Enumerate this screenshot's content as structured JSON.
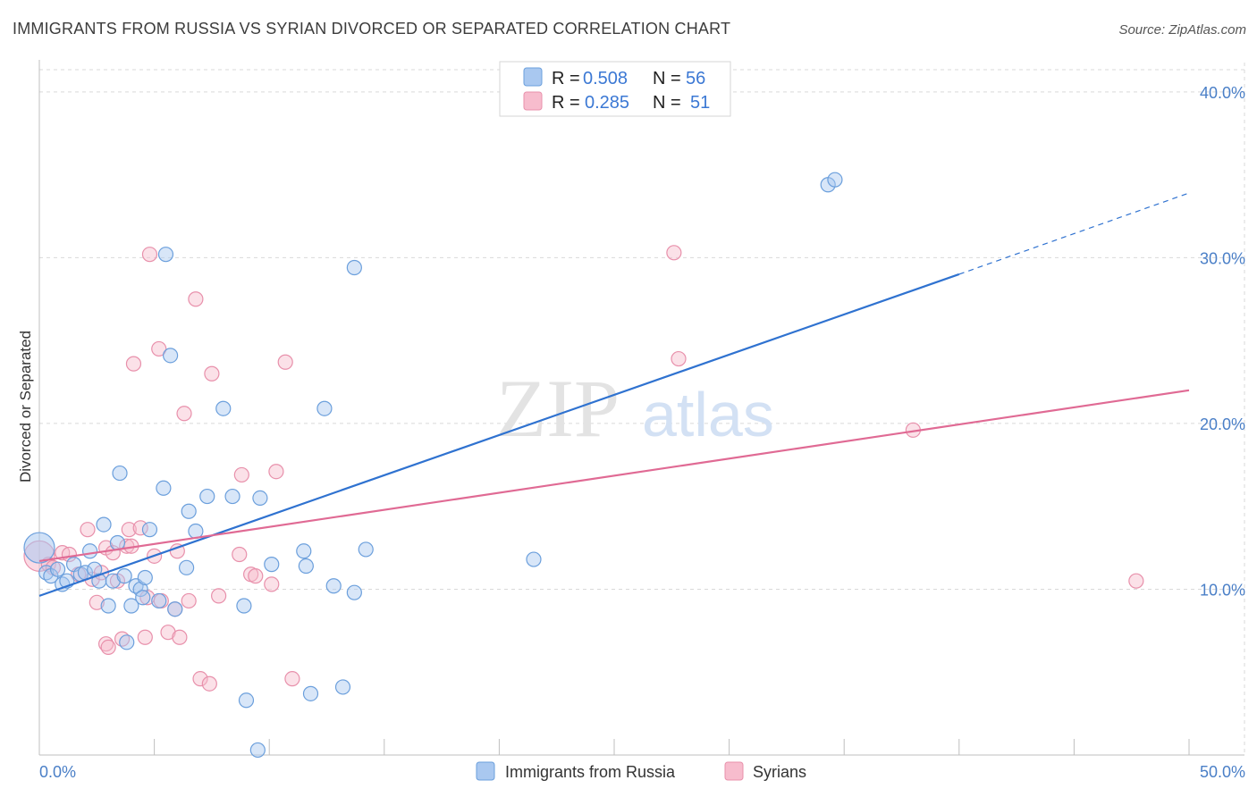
{
  "header": {
    "title": "IMMIGRANTS FROM RUSSIA VS SYRIAN DIVORCED OR SEPARATED CORRELATION CHART",
    "source": "Source: ZipAtlas.com"
  },
  "watermark": {
    "zip": "ZIP",
    "atlas": "atlas"
  },
  "colors": {
    "blue_fill": "#a9c8f0",
    "blue_stroke": "#6b9fdc",
    "blue_line": "#2f72d0",
    "pink_fill": "#f7bccd",
    "pink_stroke": "#e890ab",
    "pink_line": "#e06a94",
    "grid": "#d9d9d9",
    "tick_text": "#4a7fc7"
  },
  "legend": {
    "r_label": "R =",
    "n_label": "N =",
    "series": [
      {
        "r": "0.508",
        "n": "56"
      },
      {
        "r": "0.285",
        "n": "51"
      }
    ]
  },
  "chart_data": {
    "type": "scatter",
    "title": "IMMIGRANTS FROM RUSSIA VS SYRIAN DIVORCED OR SEPARATED CORRELATION CHART",
    "xlabel": "",
    "ylabel": "Divorced or Separated",
    "xlim": [
      0,
      50
    ],
    "ylim": [
      0,
      41.5
    ],
    "x_tick_labels": [
      "0.0%",
      "50.0%"
    ],
    "y_ticks": [
      10,
      20,
      30,
      40
    ],
    "y_tick_labels": [
      "10.0%",
      "20.0%",
      "30.0%",
      "40.0%"
    ],
    "grid": true,
    "legend_position": "top-center",
    "series": [
      {
        "name": "Immigrants from Russia",
        "color": "#a9c8f0",
        "trend": {
          "x0": 0,
          "y0": 9.6,
          "x1": 40,
          "y1": 29.0,
          "dash_to_x": 50,
          "dash_to_y": 33.9
        },
        "points": [
          [
            0.0,
            12.5,
            1
          ],
          [
            0.3,
            11.0,
            0
          ],
          [
            0.5,
            10.8,
            0
          ],
          [
            0.8,
            11.2,
            0
          ],
          [
            1.0,
            10.3,
            0
          ],
          [
            1.2,
            10.5,
            0
          ],
          [
            1.5,
            11.5,
            0
          ],
          [
            1.8,
            10.9,
            0
          ],
          [
            2.0,
            11.0,
            0
          ],
          [
            2.2,
            12.3,
            0
          ],
          [
            2.4,
            11.2,
            0
          ],
          [
            2.6,
            10.5,
            0
          ],
          [
            2.8,
            13.9,
            0
          ],
          [
            3.0,
            9.0,
            0
          ],
          [
            3.2,
            10.5,
            0
          ],
          [
            3.4,
            12.8,
            0
          ],
          [
            3.5,
            17.0,
            0
          ],
          [
            3.7,
            10.8,
            0
          ],
          [
            3.8,
            6.8,
            0
          ],
          [
            4.0,
            9.0,
            0
          ],
          [
            4.2,
            10.2,
            0
          ],
          [
            4.4,
            10.0,
            0
          ],
          [
            4.5,
            9.5,
            0
          ],
          [
            4.6,
            10.7,
            0
          ],
          [
            4.8,
            13.6,
            0
          ],
          [
            5.2,
            9.3,
            0
          ],
          [
            5.4,
            16.1,
            0
          ],
          [
            5.5,
            30.2,
            0
          ],
          [
            5.7,
            24.1,
            0
          ],
          [
            5.9,
            8.8,
            0
          ],
          [
            6.4,
            11.3,
            0
          ],
          [
            6.5,
            14.7,
            0
          ],
          [
            6.8,
            13.5,
            0
          ],
          [
            7.3,
            15.6,
            0
          ],
          [
            8.0,
            20.9,
            0
          ],
          [
            8.4,
            15.6,
            0
          ],
          [
            8.9,
            9.0,
            0
          ],
          [
            9.0,
            3.3,
            0
          ],
          [
            9.5,
            0.3,
            0
          ],
          [
            9.6,
            15.5,
            0
          ],
          [
            10.1,
            11.5,
            0
          ],
          [
            11.5,
            12.3,
            0
          ],
          [
            11.6,
            11.4,
            0
          ],
          [
            11.8,
            3.7,
            0
          ],
          [
            12.4,
            20.9,
            0
          ],
          [
            12.8,
            10.2,
            0
          ],
          [
            13.2,
            4.1,
            0
          ],
          [
            13.7,
            29.4,
            0
          ],
          [
            13.7,
            9.8,
            0
          ],
          [
            14.2,
            12.4,
            0
          ],
          [
            21.5,
            11.8,
            0
          ],
          [
            34.3,
            34.4,
            0
          ],
          [
            34.6,
            34.7,
            0
          ]
        ]
      },
      {
        "name": "Syrians",
        "color": "#f7bccd",
        "trend": {
          "x0": 0,
          "y0": 11.7,
          "x1": 50,
          "y1": 22.0
        },
        "points": [
          [
            0.0,
            12.0,
            1
          ],
          [
            0.4,
            11.5,
            0
          ],
          [
            0.6,
            11.3,
            0
          ],
          [
            1.0,
            12.2,
            0
          ],
          [
            1.3,
            12.1,
            0
          ],
          [
            1.7,
            10.9,
            0
          ],
          [
            2.1,
            13.6,
            0
          ],
          [
            2.3,
            10.6,
            0
          ],
          [
            2.5,
            9.2,
            0
          ],
          [
            2.7,
            11.0,
            0
          ],
          [
            2.9,
            12.5,
            0
          ],
          [
            2.9,
            6.7,
            0
          ],
          [
            3.0,
            6.5,
            0
          ],
          [
            3.2,
            12.2,
            0
          ],
          [
            3.4,
            10.5,
            0
          ],
          [
            3.6,
            7.0,
            0
          ],
          [
            3.8,
            12.6,
            0
          ],
          [
            3.9,
            13.6,
            0
          ],
          [
            4.0,
            12.6,
            0
          ],
          [
            4.1,
            23.6,
            0
          ],
          [
            4.4,
            13.7,
            0
          ],
          [
            4.6,
            7.1,
            0
          ],
          [
            4.7,
            9.5,
            0
          ],
          [
            4.8,
            30.2,
            0
          ],
          [
            5.0,
            12.0,
            0
          ],
          [
            5.2,
            24.5,
            0
          ],
          [
            5.3,
            9.3,
            0
          ],
          [
            5.6,
            7.4,
            0
          ],
          [
            5.9,
            8.8,
            0
          ],
          [
            6.0,
            12.3,
            0
          ],
          [
            6.1,
            7.1,
            0
          ],
          [
            6.3,
            20.6,
            0
          ],
          [
            6.5,
            9.3,
            0
          ],
          [
            6.8,
            27.5,
            0
          ],
          [
            7.0,
            4.6,
            0
          ],
          [
            7.4,
            4.3,
            0
          ],
          [
            7.5,
            23.0,
            0
          ],
          [
            7.8,
            9.6,
            0
          ],
          [
            8.7,
            12.1,
            0
          ],
          [
            8.8,
            16.9,
            0
          ],
          [
            9.2,
            10.9,
            0
          ],
          [
            9.4,
            10.8,
            0
          ],
          [
            10.1,
            10.3,
            0
          ],
          [
            10.3,
            17.1,
            0
          ],
          [
            10.7,
            23.7,
            0
          ],
          [
            11.0,
            4.6,
            0
          ],
          [
            27.6,
            30.3,
            0
          ],
          [
            27.8,
            23.9,
            0
          ],
          [
            38.0,
            19.6,
            0
          ],
          [
            47.7,
            10.5,
            0
          ]
        ]
      }
    ]
  }
}
